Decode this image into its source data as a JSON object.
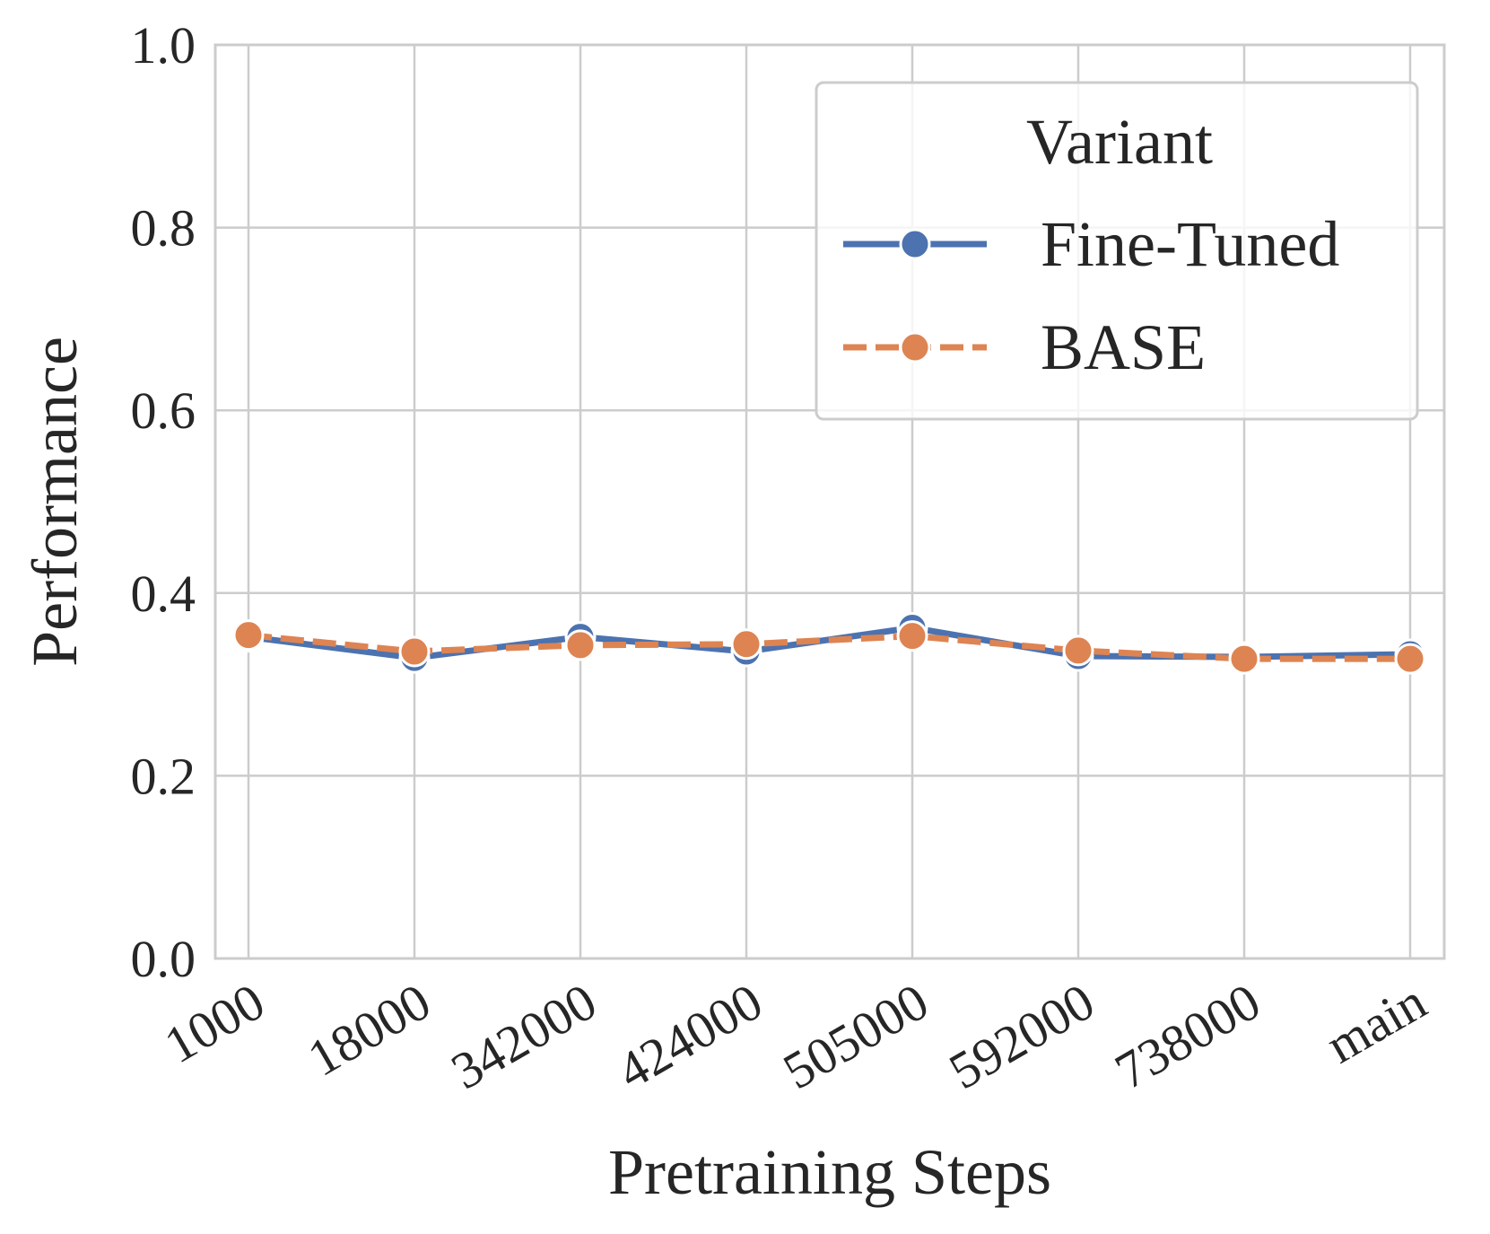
{
  "chart_data": {
    "type": "line",
    "title": "",
    "xlabel": "Pretraining Steps",
    "ylabel": "Performance",
    "categories": [
      "1000",
      "18000",
      "342000",
      "424000",
      "505000",
      "592000",
      "738000",
      "main"
    ],
    "ylim": [
      0.0,
      1.0
    ],
    "yticks": [
      "0.0",
      "0.2",
      "0.4",
      "0.6",
      "0.8",
      "1.0"
    ],
    "grid": true,
    "legend": {
      "title": "Variant",
      "placement": "top-right"
    },
    "series": [
      {
        "name": "Fine-Tuned",
        "color": "#4c72b0",
        "line_style": "solid",
        "marker": "circle",
        "values": [
          0.352,
          0.329,
          0.352,
          0.336,
          0.362,
          0.331,
          0.33,
          0.333
        ]
      },
      {
        "name": "BASE",
        "color": "#dd8452",
        "line_style": "dashed",
        "marker": "circle",
        "values": [
          0.354,
          0.336,
          0.343,
          0.344,
          0.353,
          0.337,
          0.328,
          0.328
        ]
      }
    ],
    "colors": {
      "grid": "#cccccc",
      "frame": "#cccccc",
      "text": "#262626",
      "background": "#ffffff"
    }
  }
}
